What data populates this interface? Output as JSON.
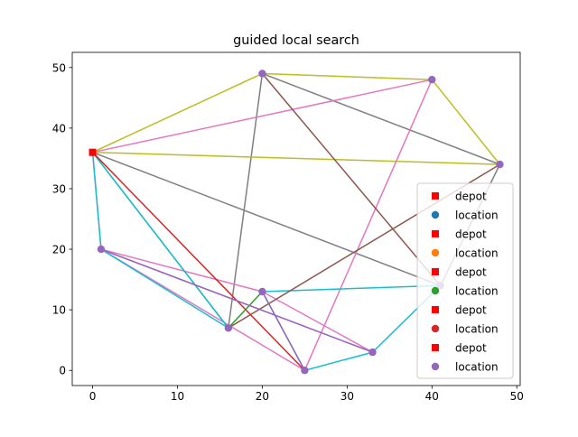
{
  "chart_data": {
    "type": "scatter",
    "title": "guided local search",
    "xlabel": "",
    "ylabel": "",
    "xlim": [
      -2.4,
      50.4
    ],
    "ylim": [
      -2.5,
      52.5
    ],
    "x_ticks": [
      0,
      10,
      20,
      30,
      40,
      50
    ],
    "y_ticks": [
      0,
      10,
      20,
      30,
      40,
      50
    ],
    "grid": false,
    "legend_position": "lower right",
    "depot": [
      0,
      36
    ],
    "locations": [
      [
        1,
        20
      ],
      [
        16,
        7
      ],
      [
        20,
        13
      ],
      [
        20,
        49
      ],
      [
        25,
        0
      ],
      [
        33,
        3
      ],
      [
        40,
        48
      ],
      [
        41,
        14
      ],
      [
        48,
        34
      ]
    ],
    "routes": [
      {
        "color": "#7f7f7f",
        "path": [
          [
            0,
            36
          ],
          [
            16,
            7
          ],
          [
            20,
            49
          ],
          [
            48,
            34
          ],
          [
            41,
            14
          ],
          [
            0,
            36
          ]
        ]
      },
      {
        "color": "#bcbd22",
        "path": [
          [
            0,
            36
          ],
          [
            20,
            49
          ],
          [
            40,
            48
          ],
          [
            48,
            34
          ],
          [
            0,
            36
          ]
        ]
      },
      {
        "color": "#e377c2",
        "path": [
          [
            0,
            36
          ],
          [
            40,
            48
          ],
          [
            25,
            0
          ],
          [
            1,
            20
          ],
          [
            0,
            36
          ]
        ]
      },
      {
        "color": "#e377c2",
        "path": [
          [
            1,
            20
          ],
          [
            33,
            3
          ],
          [
            20,
            13
          ],
          [
            1,
            20
          ]
        ]
      },
      {
        "color": "#17becf",
        "path": [
          [
            0,
            36
          ],
          [
            1,
            20
          ],
          [
            16,
            7
          ],
          [
            0,
            36
          ]
        ]
      },
      {
        "color": "#17becf",
        "path": [
          [
            20,
            13
          ],
          [
            41,
            14
          ],
          [
            33,
            3
          ],
          [
            25,
            0
          ],
          [
            20,
            13
          ]
        ]
      },
      {
        "color": "#8c564b",
        "path": [
          [
            20,
            49
          ],
          [
            41,
            14
          ]
        ]
      },
      {
        "color": "#8c564b",
        "path": [
          [
            16,
            7
          ],
          [
            48,
            34
          ]
        ]
      },
      {
        "color": "#d62728",
        "path": [
          [
            0,
            36
          ],
          [
            25,
            0
          ]
        ]
      },
      {
        "color": "#2ca02c",
        "path": [
          [
            16,
            7
          ],
          [
            20,
            13
          ]
        ]
      },
      {
        "color": "#9467bd",
        "path": [
          [
            1,
            20
          ],
          [
            33,
            3
          ]
        ]
      },
      {
        "color": "#9467bd",
        "path": [
          [
            20,
            13
          ],
          [
            25,
            0
          ]
        ]
      }
    ],
    "legend": [
      {
        "label": "depot",
        "marker": "square",
        "color": "#ff0000"
      },
      {
        "label": "location",
        "marker": "circle",
        "color": "#1f77b4"
      },
      {
        "label": "depot",
        "marker": "square",
        "color": "#ff0000"
      },
      {
        "label": "location",
        "marker": "circle",
        "color": "#ff7f0e"
      },
      {
        "label": "depot",
        "marker": "square",
        "color": "#ff0000"
      },
      {
        "label": "location",
        "marker": "circle",
        "color": "#2ca02c"
      },
      {
        "label": "depot",
        "marker": "square",
        "color": "#ff0000"
      },
      {
        "label": "location",
        "marker": "circle",
        "color": "#d62728"
      },
      {
        "label": "depot",
        "marker": "square",
        "color": "#ff0000"
      },
      {
        "label": "location",
        "marker": "circle",
        "color": "#9467bd"
      }
    ],
    "location_marker_color": "#9467bd",
    "depot_marker_color": "#ff0000"
  }
}
